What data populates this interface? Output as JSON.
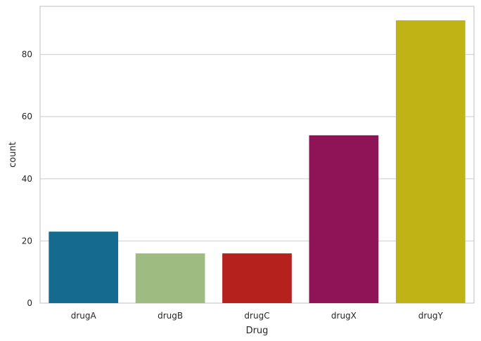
{
  "chart_data": {
    "type": "bar",
    "categories": [
      "drugA",
      "drugB",
      "drugC",
      "drugX",
      "drugY"
    ],
    "values": [
      23,
      16,
      16,
      54,
      91
    ],
    "colors": [
      "#156b8f",
      "#9ebb82",
      "#b5221e",
      "#8e1457",
      "#bfb315"
    ],
    "xlabel": "Drug",
    "ylabel": "count",
    "ylim": [
      0,
      95.5
    ],
    "yticks": [
      0,
      20,
      40,
      60,
      80
    ],
    "grid": true,
    "background": "#ffffff",
    "grid_color": "#cccccc"
  }
}
